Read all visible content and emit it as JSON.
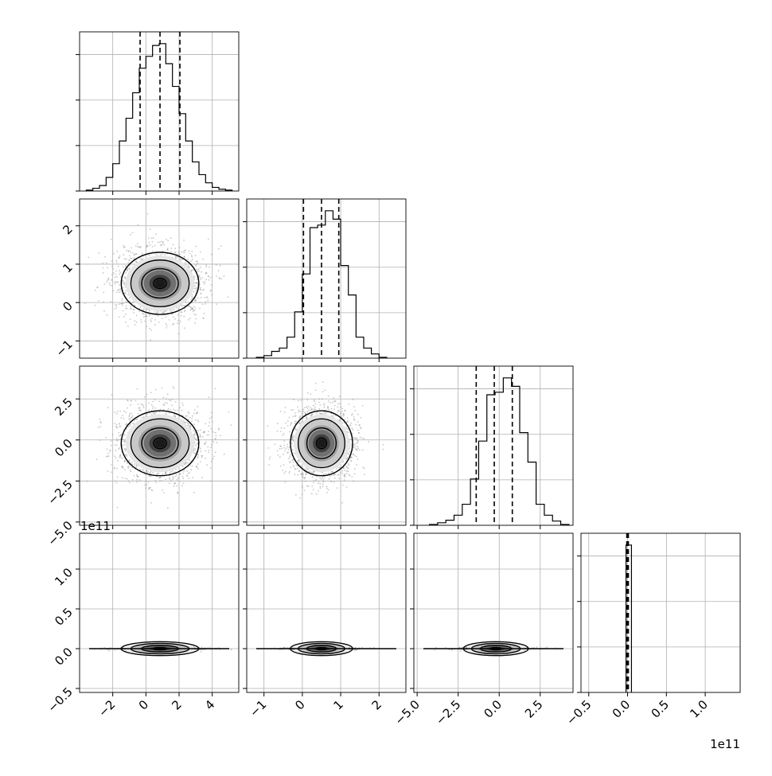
{
  "chart_data": {
    "type": "corner",
    "description_free": true,
    "grid": true,
    "panel_grid": "4x4 lower-triangle",
    "axis_ticks": {
      "p0": {
        "ticks": [
          -2,
          0,
          2,
          4
        ],
        "labels": [
          "−2",
          "0",
          "2",
          "4"
        ],
        "range": [
          -4.0,
          5.6
        ]
      },
      "p1": {
        "ticks": [
          -1,
          0,
          1,
          2
        ],
        "labels": [
          "−1",
          "0",
          "1",
          "2"
        ],
        "range": [
          -1.45,
          2.7
        ]
      },
      "p2": {
        "ticks": [
          -5.0,
          -2.5,
          0.0,
          2.5
        ],
        "labels": [
          "−5.0",
          "−2.5",
          "0.0",
          "2.5"
        ],
        "ticks_x": [
          -5.0,
          -2.5,
          0.0,
          2.5
        ],
        "labels_x": [
          "−5.0",
          "−2.5",
          "0.0",
          "2.5"
        ],
        "range": [
          -5.2,
          4.5
        ]
      },
      "p3": {
        "ticks": [
          -0.5,
          0.0,
          0.5,
          1.0
        ],
        "labels": [
          "−0.5",
          "0.0",
          "0.5",
          "1.0"
        ],
        "labels_y": [
          "−0.5",
          "0.0",
          "0.5",
          "1.0"
        ],
        "range_x": [
          -0.6,
          1.45
        ],
        "range_y": [
          -0.55,
          1.45
        ],
        "offset": "1e11"
      }
    },
    "y_offset_label": "1e11",
    "x_offset_label": "1e11",
    "histograms": [
      {
        "param": "p0",
        "bin_edges": [
          -3.6,
          -3.2,
          -2.8,
          -2.4,
          -2.0,
          -1.6,
          -1.2,
          -0.8,
          -0.4,
          0.0,
          0.4,
          0.8,
          1.2,
          1.6,
          2.0,
          2.4,
          2.8,
          3.2,
          3.6,
          4.0,
          4.4,
          4.8,
          5.2
        ],
        "counts": [
          1,
          3,
          6,
          15,
          30,
          55,
          80,
          108,
          135,
          148,
          160,
          162,
          140,
          115,
          85,
          55,
          32,
          18,
          9,
          4,
          2,
          1
        ],
        "quantiles": [
          -0.35,
          0.85,
          2.05
        ]
      },
      {
        "param": "p1",
        "bin_edges": [
          -1.2,
          -1.0,
          -0.8,
          -0.6,
          -0.4,
          -0.2,
          0.0,
          0.2,
          0.4,
          0.6,
          0.8,
          1.0,
          1.2,
          1.4,
          1.6,
          1.8,
          2.0,
          2.2
        ],
        "counts": [
          1,
          3,
          8,
          12,
          25,
          55,
          100,
          155,
          158,
          175,
          165,
          110,
          75,
          25,
          12,
          5,
          1
        ],
        "quantiles": [
          0.03,
          0.5,
          0.95
        ]
      },
      {
        "param": "p2",
        "bin_edges": [
          -4.25,
          -3.75,
          -3.25,
          -2.75,
          -2.25,
          -1.75,
          -1.25,
          -0.75,
          -0.25,
          0.25,
          0.75,
          1.25,
          1.75,
          2.25,
          2.75,
          3.25,
          3.75,
          4.25
        ],
        "counts": [
          1,
          3,
          6,
          12,
          25,
          55,
          100,
          155,
          158,
          175,
          165,
          110,
          75,
          25,
          12,
          5,
          1
        ],
        "quantiles": [
          -1.4,
          -0.3,
          0.8
        ]
      },
      {
        "param": "p3",
        "bin_edges": [
          -0.02,
          0.05
        ],
        "counts": [
          1
        ],
        "quantiles": [
          -0.01,
          0.0,
          0.01
        ]
      }
    ],
    "density_panels": [
      {
        "x": "p0",
        "y": "p1",
        "center": [
          0.85,
          0.5
        ],
        "spread": [
          1.3,
          0.45
        ]
      },
      {
        "x": "p0",
        "y": "p2",
        "center": [
          0.85,
          -0.2
        ],
        "spread": [
          1.3,
          1.1
        ]
      },
      {
        "x": "p1",
        "y": "p2",
        "center": [
          0.5,
          -0.2
        ],
        "spread": [
          0.45,
          1.1
        ]
      },
      {
        "x": "p0",
        "y": "p3",
        "center": [
          0.85,
          0.0
        ],
        "spread": [
          1.3,
          0.012
        ]
      },
      {
        "x": "p1",
        "y": "p3",
        "center": [
          0.5,
          0.0
        ],
        "spread": [
          0.45,
          0.012
        ]
      },
      {
        "x": "p2",
        "y": "p3",
        "center": [
          -0.2,
          0.0
        ],
        "spread": [
          1.1,
          0.012
        ]
      }
    ]
  }
}
